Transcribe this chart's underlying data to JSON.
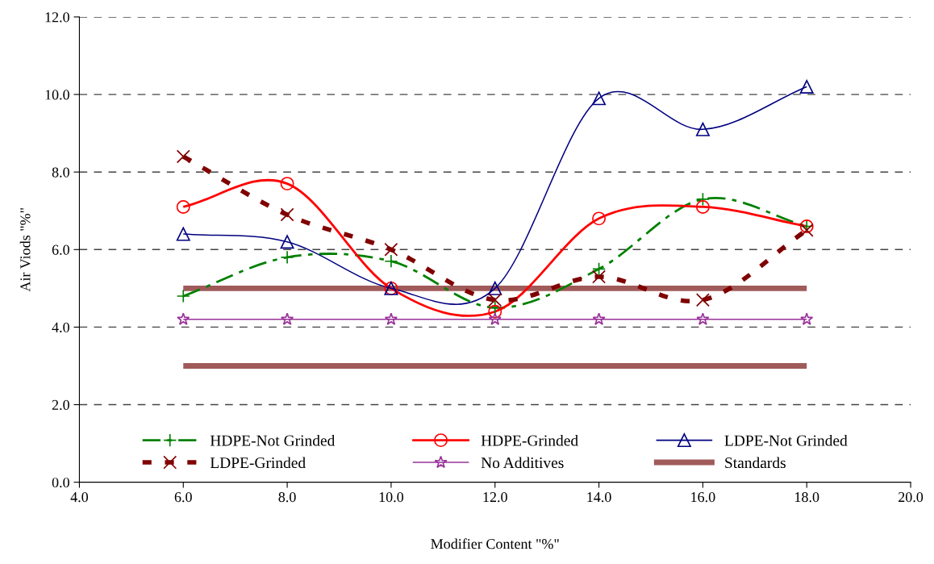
{
  "chart_data": {
    "type": "line",
    "xlabel": "Modifier Content \"%\"",
    "ylabel": "Air Viods \"%\"",
    "x": [
      6,
      8,
      10,
      12,
      14,
      16,
      18
    ],
    "series": [
      {
        "name": "HDPE-Not Grinded",
        "color": "#008000",
        "line_style": "dashdot",
        "marker": "plus",
        "values": [
          4.8,
          5.8,
          5.7,
          4.5,
          5.5,
          7.3,
          6.6
        ]
      },
      {
        "name": "HDPE-Grinded",
        "color": "#ff0000",
        "line_style": "solid",
        "marker": "circle",
        "values": [
          7.1,
          7.7,
          5.0,
          4.4,
          6.8,
          7.1,
          6.6
        ]
      },
      {
        "name": "LDPE-Not Grinded",
        "color": "#000080",
        "line_style": "solid",
        "marker": "triangle",
        "values": [
          6.4,
          6.2,
          5.0,
          5.0,
          9.9,
          9.1,
          10.2
        ]
      },
      {
        "name": "LDPE-Grinded",
        "color": "#800000",
        "line_style": "dotted",
        "marker": "cross",
        "values": [
          8.4,
          6.9,
          6.0,
          4.7,
          5.3,
          4.7,
          6.5
        ]
      },
      {
        "name": "No Additives",
        "color": "#993399",
        "line_style": "solid",
        "marker": "star",
        "values": [
          4.2,
          4.2,
          4.2,
          4.2,
          4.2,
          4.2,
          4.2
        ]
      },
      {
        "name": "Standards",
        "color": "#a05a5a",
        "line_style": "solid",
        "marker": "none",
        "values": [
          5.0,
          5.0,
          5.0,
          5.0,
          5.0,
          5.0,
          5.0
        ]
      },
      {
        "color": "#a05a5a",
        "line_style": "solid",
        "marker": "none",
        "values": [
          3.0,
          3.0,
          3.0,
          3.0,
          3.0,
          3.0,
          3.0
        ]
      }
    ],
    "xlim": [
      4.0,
      20.0
    ],
    "xticks": [
      {
        "value": 4,
        "label": "4.0"
      },
      {
        "value": 6,
        "label": "6.0"
      },
      {
        "value": 8,
        "label": "8.0"
      },
      {
        "value": 10,
        "label": "10.0"
      },
      {
        "value": 12,
        "label": "12.0"
      },
      {
        "value": 14,
        "label": "14.0"
      },
      {
        "value": 16,
        "label": "16.0"
      },
      {
        "value": 18,
        "label": "18.0"
      },
      {
        "value": 20,
        "label": "20.0"
      }
    ],
    "ylim": [
      0.0,
      12.0
    ],
    "yticks": [
      {
        "value": 0,
        "label": "0.0"
      },
      {
        "value": 2,
        "label": "2.0"
      },
      {
        "value": 4,
        "label": "4.0"
      },
      {
        "value": 6,
        "label": "6.0"
      },
      {
        "value": 8,
        "label": "8.0"
      },
      {
        "value": 10,
        "label": "10.0"
      },
      {
        "value": 12,
        "label": "12.0"
      }
    ],
    "grid": "y",
    "legend": "bottom"
  }
}
